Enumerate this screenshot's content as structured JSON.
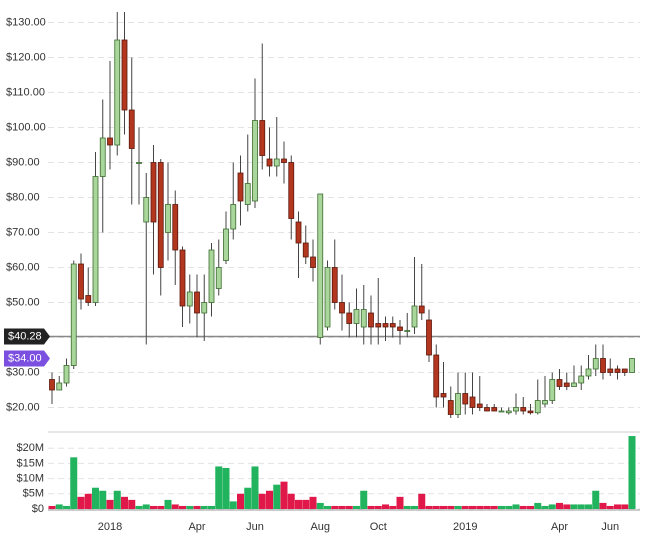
{
  "chart_data": {
    "type": "candlestick",
    "categories": [
      null,
      null,
      null,
      null,
      null,
      null,
      null,
      null,
      "2018",
      null,
      null,
      null,
      null,
      null,
      null,
      null,
      null,
      null,
      null,
      null,
      "Apr",
      null,
      null,
      null,
      null,
      null,
      null,
      null,
      "Jun",
      null,
      null,
      null,
      null,
      null,
      null,
      null,
      null,
      "Aug",
      null,
      null,
      null,
      null,
      null,
      null,
      null,
      "Oct",
      null,
      null,
      null,
      null,
      null,
      null,
      null,
      null,
      null,
      null,
      null,
      "2019",
      null,
      null,
      null,
      null,
      null,
      null,
      null,
      null,
      null,
      null,
      null,
      null,
      "Apr",
      null,
      null,
      null,
      null,
      null,
      null,
      "Jun",
      null,
      null,
      null
    ],
    "open": [
      28,
      25,
      27,
      32,
      61,
      52,
      50,
      86,
      97,
      95,
      125,
      105,
      90,
      73,
      90,
      90,
      70,
      78,
      65,
      49,
      53,
      47,
      50,
      54,
      62,
      71,
      87,
      78,
      79,
      102,
      91,
      89,
      91,
      90,
      73,
      67,
      63,
      40,
      43,
      60,
      50,
      47,
      44,
      43,
      47,
      44,
      44,
      44,
      43,
      42,
      43,
      49,
      45,
      35,
      24,
      22,
      18,
      24,
      23,
      21,
      20,
      20,
      19,
      18.5,
      19,
      20,
      19,
      18.5,
      21,
      22,
      28,
      27,
      26,
      27,
      29,
      31,
      34,
      31,
      31,
      31,
      30
    ],
    "high": [
      30,
      29,
      34,
      62,
      64,
      60,
      93,
      108,
      119,
      133,
      133,
      120,
      100,
      87,
      95,
      91,
      90,
      82,
      66,
      58,
      58,
      58,
      67,
      68,
      76,
      90,
      92,
      98,
      114,
      124,
      100,
      103,
      96,
      92,
      76,
      72,
      68,
      81,
      62,
      68,
      58,
      50,
      54,
      55,
      52,
      57,
      46,
      46,
      45,
      47,
      63,
      61,
      48,
      38,
      33,
      26,
      30,
      30,
      30,
      29,
      21,
      21,
      20,
      20,
      24,
      23,
      21,
      28,
      29,
      30,
      31,
      30,
      32,
      32,
      35,
      38,
      38,
      34,
      32,
      31,
      34
    ],
    "low": [
      21,
      25,
      26,
      31,
      48,
      49,
      49,
      70,
      88,
      92,
      98,
      78,
      78,
      38,
      58,
      52,
      62,
      55,
      43,
      44,
      40,
      39,
      46,
      52,
      61,
      68,
      72,
      76,
      77,
      88,
      86,
      86,
      84,
      68,
      57,
      61,
      56,
      38,
      42,
      48,
      42,
      40,
      40,
      38,
      38,
      38,
      39,
      40,
      38,
      40,
      41,
      45,
      33,
      20,
      20,
      17,
      17,
      18,
      18,
      19,
      19,
      19,
      19,
      18,
      18,
      18,
      18,
      18,
      20,
      21,
      25,
      25,
      26,
      25,
      28,
      29,
      28,
      29,
      28,
      29,
      30
    ],
    "close": [
      25,
      27,
      32,
      61,
      51,
      50,
      86,
      97,
      95,
      125,
      105,
      94,
      90,
      80,
      73,
      60,
      78,
      65,
      49,
      53,
      47,
      50,
      65,
      60,
      71,
      78,
      79,
      84,
      102,
      92,
      89,
      91,
      90,
      74,
      67,
      63,
      60,
      81,
      60,
      50,
      47,
      44,
      48,
      48,
      43,
      43,
      43,
      43,
      42,
      42,
      49,
      47,
      35,
      23,
      23,
      18,
      24,
      21,
      20,
      20,
      19,
      19,
      19,
      19,
      20,
      19,
      18.5,
      22,
      22,
      28,
      26,
      26,
      27,
      29,
      31,
      34,
      30,
      30,
      30,
      30,
      34
    ],
    "volume": [
      1000000,
      1500000,
      1000000,
      17000000,
      4000000,
      5000000,
      7000000,
      6000000,
      3000000,
      6000000,
      4000000,
      3000000,
      1000000,
      1500000,
      1000000,
      1000000,
      3000000,
      1500000,
      1000000,
      1000000,
      1000000,
      1000000,
      1000000,
      14000000,
      13500000,
      2500000,
      5000000,
      7000000,
      14000000,
      5000000,
      6000000,
      8000000,
      9000000,
      5000000,
      3000000,
      3000000,
      4000000,
      2000000,
      1000000,
      1000000,
      1000000,
      1000000,
      1000000,
      6000000,
      1000000,
      1000000,
      1500000,
      1000000,
      4000000,
      1000000,
      1000000,
      5000000,
      1000000,
      1000000,
      1000000,
      1000000,
      1000000,
      1000000,
      1000000,
      1000000,
      1000000,
      1000000,
      1000000,
      1000000,
      1500000,
      1000000,
      1000000,
      2000000,
      1000000,
      1500000,
      2000000,
      1500000,
      1500000,
      1500000,
      1500000,
      6000000,
      2000000,
      1000000,
      1500000,
      1500000,
      24000000
    ],
    "up_color": "#a9d69b",
    "down_color": "#b3361e",
    "volume_up_color": "#22b35e",
    "volume_down_color": "#e0194a",
    "ylim": [
      15,
      135
    ],
    "yticks": [
      {
        "value": 20,
        "label": "$20.00"
      },
      {
        "value": 30,
        "label": "$30.00"
      },
      {
        "value": 40,
        "label": "$40.00"
      },
      {
        "value": 50,
        "label": "$50.00"
      },
      {
        "value": 60,
        "label": "$60.00"
      },
      {
        "value": 70,
        "label": "$70.00"
      },
      {
        "value": 80,
        "label": "$80.00"
      },
      {
        "value": 90,
        "label": "$90.00"
      },
      {
        "value": 100,
        "label": "$100.00"
      },
      {
        "value": 110,
        "label": "$110.00"
      },
      {
        "value": 120,
        "label": "$120.00"
      },
      {
        "value": 130,
        "label": "$130.00"
      }
    ],
    "volume_ylim": [
      0,
      25000000
    ],
    "volume_yticks": [
      {
        "value": 0,
        "label": "$0"
      },
      {
        "value": 5000000,
        "label": "$5M"
      },
      {
        "value": 10000000,
        "label": "$10M"
      },
      {
        "value": 15000000,
        "label": "$15M"
      },
      {
        "value": 20000000,
        "label": "$20M"
      }
    ],
    "price_line": {
      "value": 40.28,
      "label": "$40.28",
      "color": "#222222"
    },
    "last_price": {
      "value": 34,
      "label": "$34.00",
      "color": "#7b4fe0"
    },
    "grid": true
  }
}
